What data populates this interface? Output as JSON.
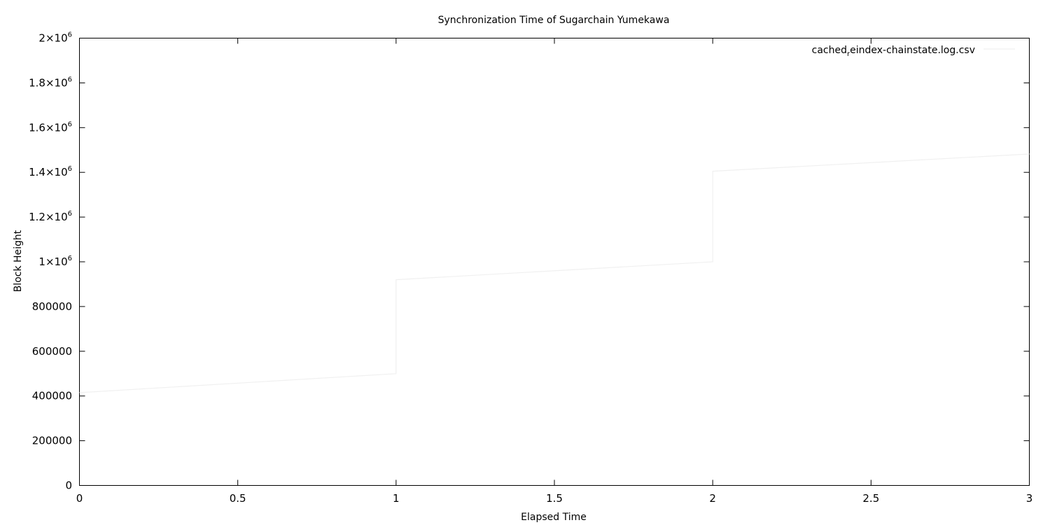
{
  "chart_data": {
    "type": "line",
    "title": "Synchronization Time of Sugarchain Yumekawa",
    "xlabel": "Elapsed Time",
    "ylabel": "Block Height",
    "xlim": [
      0,
      3
    ],
    "ylim": [
      0,
      2000000
    ],
    "x_ticks": [
      {
        "value": 0,
        "label": "0"
      },
      {
        "value": 0.5,
        "label": "0.5"
      },
      {
        "value": 1,
        "label": "1"
      },
      {
        "value": 1.5,
        "label": "1.5"
      },
      {
        "value": 2,
        "label": "2"
      },
      {
        "value": 2.5,
        "label": "2.5"
      },
      {
        "value": 3,
        "label": "3"
      }
    ],
    "y_ticks": [
      {
        "value": 0,
        "label": "0"
      },
      {
        "value": 200000,
        "label": "200000"
      },
      {
        "value": 400000,
        "label": "400000"
      },
      {
        "value": 600000,
        "label": "600000"
      },
      {
        "value": 800000,
        "label": "800000"
      },
      {
        "value": 1000000,
        "label": "1×10",
        "sup": "6"
      },
      {
        "value": 1200000,
        "label": "1.2×10",
        "sup": "6"
      },
      {
        "value": 1400000,
        "label": "1.4×10",
        "sup": "6"
      },
      {
        "value": 1600000,
        "label": "1.6×10",
        "sup": "6"
      },
      {
        "value": 1800000,
        "label": "1.8×10",
        "sup": "6"
      },
      {
        "value": 2000000,
        "label": "2×10",
        "sup": "6"
      }
    ],
    "grid": false,
    "legend_position": "top-right",
    "series": [
      {
        "name": "cached_reindex-chainstate.log.csv",
        "legend_parts": [
          "cached",
          "r",
          "eindex-chainstate.log.csv"
        ],
        "color": "#f0f0f0",
        "points": [
          [
            0,
            415000
          ],
          [
            1,
            500000
          ],
          [
            1,
            920000
          ],
          [
            2,
            1000000
          ],
          [
            2,
            1405000
          ],
          [
            3,
            1482000
          ]
        ]
      }
    ]
  }
}
